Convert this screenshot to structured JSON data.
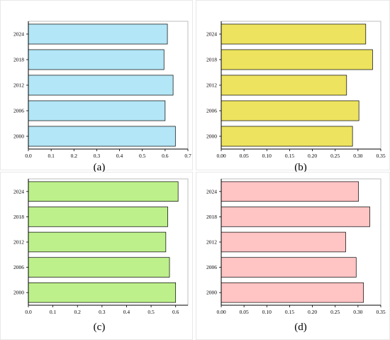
{
  "chart_data": [
    {
      "type": "bar",
      "orientation": "horizontal",
      "panel_label": "(a)",
      "categories": [
        "2000",
        "2006",
        "2012",
        "2018",
        "2024"
      ],
      "values": [
        0.645,
        0.6,
        0.635,
        0.595,
        0.61
      ],
      "xlim": [
        0,
        0.7
      ],
      "xticks": [
        "0.0",
        "0.1",
        "0.2",
        "0.3",
        "0.4",
        "0.5",
        "0.6",
        "0.7"
      ],
      "color": "#b3e6f7",
      "grid": false
    },
    {
      "type": "bar",
      "orientation": "horizontal",
      "panel_label": "(b)",
      "categories": [
        "2000",
        "2006",
        "2012",
        "2018",
        "2024"
      ],
      "values": [
        0.288,
        0.302,
        0.275,
        0.332,
        0.317
      ],
      "xlim": [
        0,
        0.35
      ],
      "xticks": [
        "0.00",
        "0.05",
        "0.10",
        "0.15",
        "0.20",
        "0.25",
        "0.30",
        "0.35"
      ],
      "color": "#ede35f",
      "grid": false
    },
    {
      "type": "bar",
      "orientation": "horizontal",
      "panel_label": "(c)",
      "categories": [
        "2000",
        "2006",
        "2012",
        "2018",
        "2024"
      ],
      "values": [
        0.6,
        0.575,
        0.56,
        0.568,
        0.61
      ],
      "xlim": [
        0,
        0.65
      ],
      "xticks": [
        "0.0",
        "0.1",
        "0.2",
        "0.3",
        "0.4",
        "0.5",
        "0.6"
      ],
      "color": "#bdf08a",
      "grid": false
    },
    {
      "type": "bar",
      "orientation": "horizontal",
      "panel_label": "(d)",
      "categories": [
        "2000",
        "2006",
        "2012",
        "2018",
        "2024"
      ],
      "values": [
        0.312,
        0.296,
        0.273,
        0.326,
        0.301
      ],
      "xlim": [
        0,
        0.35
      ],
      "xticks": [
        "0.00",
        "0.05",
        "0.10",
        "0.15",
        "0.20",
        "0.25",
        "0.30",
        "0.35"
      ],
      "color": "#ffc4c4",
      "grid": false
    }
  ]
}
